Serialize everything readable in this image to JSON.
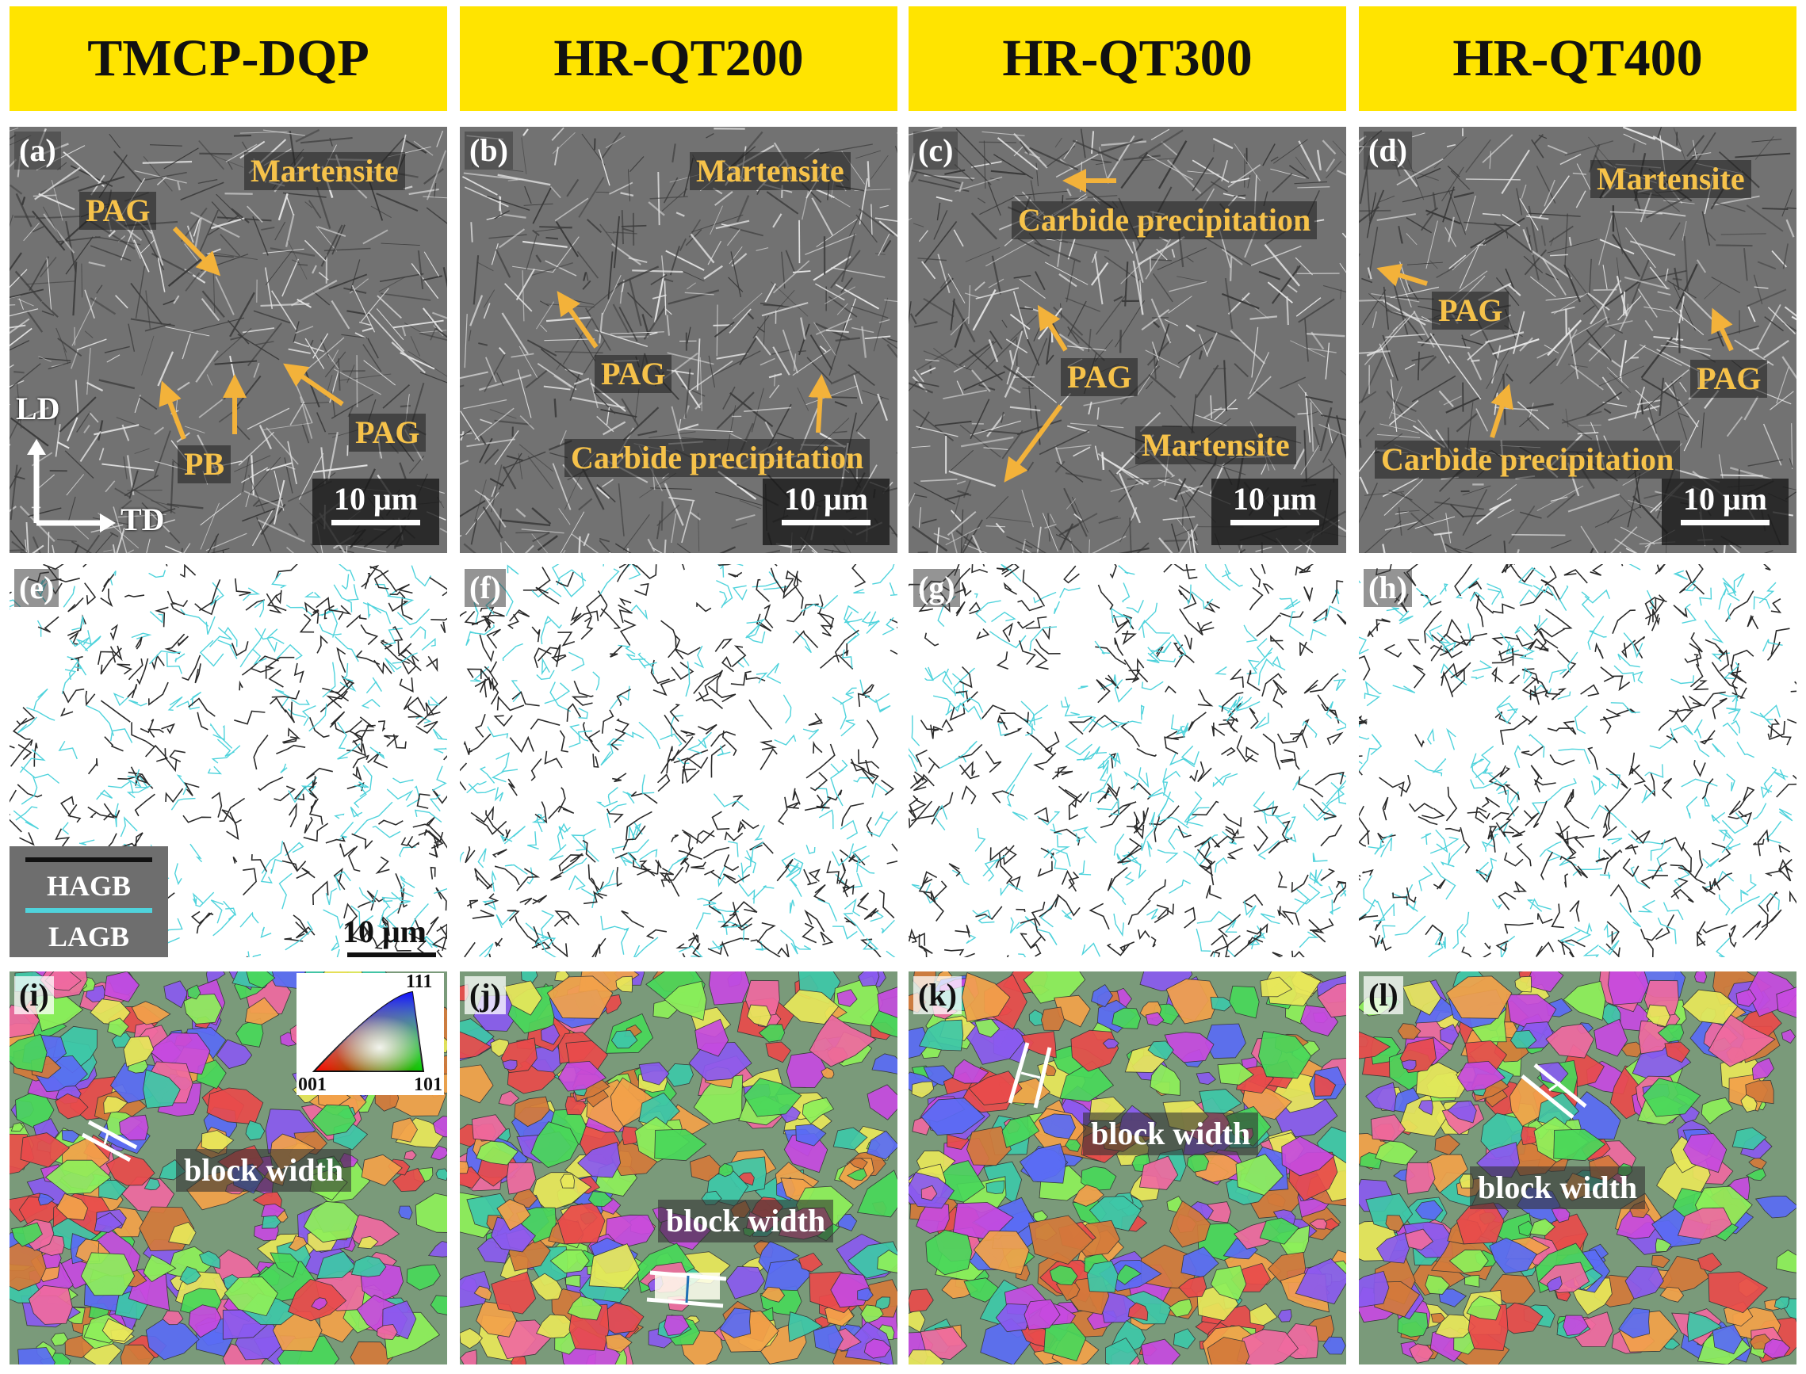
{
  "columns": [
    {
      "title": "TMCP-DQP",
      "sem_letter": "(a)",
      "gb_letter": "(e)",
      "ipf_letter": "(i)"
    },
    {
      "title": "HR-QT200",
      "sem_letter": "(b)",
      "gb_letter": "(f)",
      "ipf_letter": "(j)"
    },
    {
      "title": "HR-QT300",
      "sem_letter": "(c)",
      "gb_letter": "(g)",
      "ipf_letter": "(k)"
    },
    {
      "title": "HR-QT400",
      "sem_letter": "(d)",
      "gb_letter": "(h)",
      "ipf_letter": "(l)"
    }
  ],
  "annotations": {
    "martensite": "Martensite",
    "pag": "PAG",
    "pb": "PB",
    "carbide": "Carbide precipitation",
    "block_width": "block width"
  },
  "scale_label": "10 μm",
  "axes": {
    "ld": "LD",
    "td": "TD"
  },
  "legend": {
    "hagb": "HAGB",
    "lagb": "LAGB"
  },
  "ipf_key": {
    "top": "111",
    "left": "001",
    "right": "101"
  },
  "colors": {
    "header_bg": "#ffe400",
    "annotation_text": "#f6c24a",
    "arrow": "#f3b23a",
    "hagb": "#111111",
    "lagb": "#4fd3dc"
  }
}
